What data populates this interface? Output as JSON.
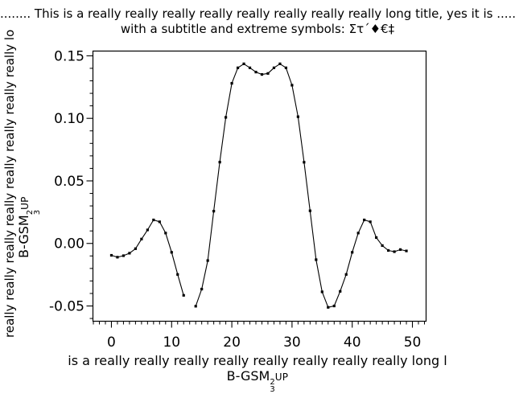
{
  "chart_data": {
    "type": "line",
    "marker": "square",
    "line_color": "#000000",
    "marker_color": "#000000",
    "background_color": "#ffffff",
    "title": "........ This is a really really really really really really really really long title, yes it is .......",
    "subtitle": "with a subtitle and extreme symbols: Στ´♦€‡",
    "xlabel": "is a really really really really really really really really long l",
    "ylabel": "really really really really really really really really lo",
    "unit_label": {
      "base": "B-GSM",
      "sup": "2",
      "sub": "3",
      "suffix": "UP"
    },
    "xlim": [
      -3.07,
      52.27
    ],
    "ylim": [
      -0.0622,
      0.1538
    ],
    "grid": false,
    "legend": null,
    "xticks": [
      0,
      10,
      20,
      30,
      40,
      50
    ],
    "xtick_labels": [
      "0",
      "10",
      "20",
      "30",
      "40",
      "50"
    ],
    "x_minor_step": 1,
    "yticks": [
      -0.05,
      0.0,
      0.05,
      0.1,
      0.15
    ],
    "ytick_labels": [
      "-0.05",
      "0.00",
      "0.05",
      "0.10",
      "0.15"
    ],
    "y_minor_step": 0.01,
    "note": "data point at x=13 is missing (gap in line)",
    "x": [
      0,
      1,
      2,
      3,
      4,
      5,
      6,
      7,
      8,
      9,
      10,
      11,
      12,
      13,
      14,
      15,
      16,
      17,
      18,
      19,
      20,
      21,
      22,
      23,
      24,
      25,
      26,
      27,
      28,
      29,
      30,
      31,
      32,
      33,
      34,
      35,
      36,
      37,
      38,
      39,
      40,
      41,
      42,
      43,
      44,
      45,
      46,
      47,
      48,
      49
    ],
    "values": [
      -0.0095,
      -0.011,
      -0.0098,
      -0.0078,
      -0.0042,
      0.0035,
      0.0108,
      0.0188,
      0.0173,
      0.0083,
      -0.0071,
      -0.0248,
      -0.0415,
      null,
      -0.0502,
      -0.0365,
      -0.0137,
      0.0258,
      0.065,
      0.1008,
      0.128,
      0.1404,
      0.1436,
      0.1404,
      0.137,
      0.1351,
      0.1359,
      0.1404,
      0.1436,
      0.1404,
      0.1265,
      0.1013,
      0.0649,
      0.0261,
      -0.013,
      -0.0387,
      -0.0511,
      -0.05,
      -0.0383,
      -0.0248,
      -0.0071,
      0.0083,
      0.0188,
      0.0173,
      0.0047,
      -0.0017,
      -0.0056,
      -0.0066,
      -0.0049,
      -0.006
    ]
  }
}
